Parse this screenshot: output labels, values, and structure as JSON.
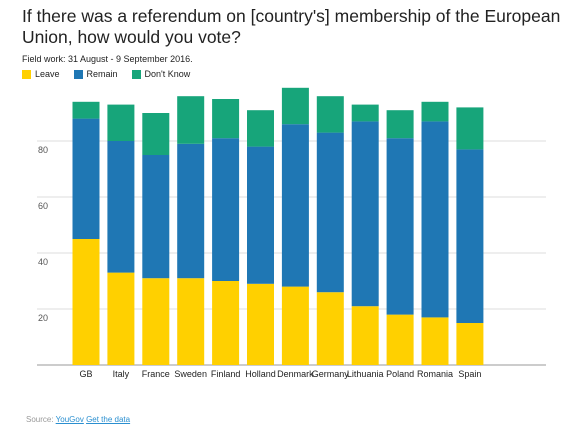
{
  "chart_data": {
    "type": "bar",
    "stacked": true,
    "title": "If there was a referendum on [country's] membership of the European Union, how would you vote?",
    "subtitle": "Field work: 31 August - 9 September 2016.",
    "categories": [
      "GB",
      "Italy",
      "France",
      "Sweden",
      "Finland",
      "Holland",
      "Denmark",
      "Germany",
      "Lithuania",
      "Poland",
      "Romania",
      "Spain"
    ],
    "series": [
      {
        "name": "Leave",
        "color": "#ffd000",
        "values": [
          45,
          33,
          31,
          31,
          30,
          29,
          28,
          26,
          21,
          18,
          17,
          15
        ]
      },
      {
        "name": "Remain",
        "color": "#1f77b4",
        "values": [
          43,
          47,
          44,
          48,
          51,
          49,
          58,
          57,
          66,
          63,
          70,
          62
        ]
      },
      {
        "name": "Don't Know",
        "color": "#17a57a",
        "values": [
          6,
          13,
          15,
          17,
          14,
          13,
          13,
          13,
          6,
          10,
          7,
          15
        ]
      }
    ],
    "ylim": [
      0,
      100
    ],
    "yticks": [
      20,
      40,
      60,
      80
    ],
    "grid": true,
    "legend_position": "top-left"
  },
  "footer": {
    "source_label": "Source:",
    "source_link": "YouGov",
    "data_link": "Get the data"
  }
}
